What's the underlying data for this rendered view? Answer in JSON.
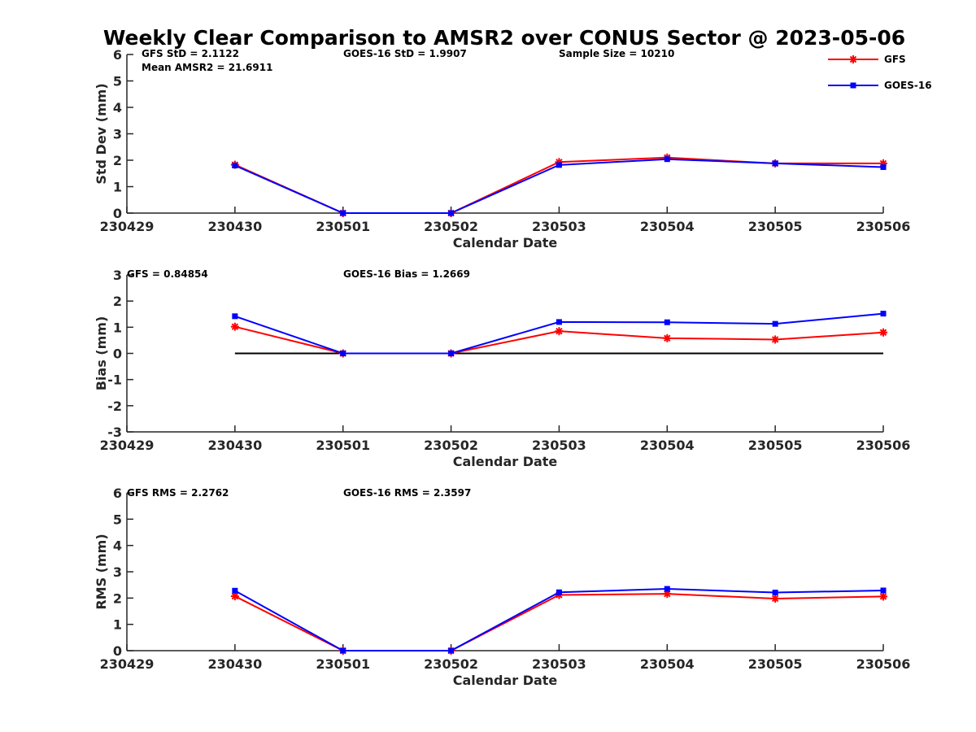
{
  "chart_data": {
    "type": "line",
    "title": "Weekly Clear Comparison to AMSR2 over CONUS Sector @ 2023-05-06",
    "x_ticks": [
      "230429",
      "230430",
      "230501",
      "230502",
      "230503",
      "230504",
      "230505",
      "230506"
    ],
    "legend": {
      "position": "top-right",
      "entries": [
        {
          "name": "GFS",
          "color": "#ff0000",
          "marker": "asterisk"
        },
        {
          "name": "GOES-16",
          "color": "#0000ff",
          "marker": "square"
        }
      ]
    },
    "panels": [
      {
        "id": "std",
        "ylabel": "Std Dev (mm)",
        "xlabel": "Calendar Date",
        "ylim": [
          0,
          6
        ],
        "yticks": [
          "0",
          "1",
          "2",
          "3",
          "4",
          "5",
          "6"
        ],
        "annotations": [
          "GFS StD = 2.1122",
          "Mean AMSR2 = 21.6911",
          "GOES-16 StD = 1.9907",
          "Sample Size = 10210"
        ],
        "zero_line": false,
        "series": [
          {
            "name": "GFS",
            "color": "#ff0000",
            "marker": "asterisk",
            "values": [
              1.83,
              0.0,
              0.0,
              1.93,
              2.1,
              1.88,
              1.88
            ]
          },
          {
            "name": "GOES-16",
            "color": "#0000ff",
            "marker": "square",
            "values": [
              1.8,
              0.0,
              0.0,
              1.82,
              2.04,
              1.88,
              1.74
            ]
          }
        ]
      },
      {
        "id": "bias",
        "ylabel": "Bias (mm)",
        "xlabel": "Calendar Date",
        "ylim": [
          -3,
          3
        ],
        "yticks": [
          "-3",
          "-2",
          "-1",
          "0",
          "1",
          "2",
          "3"
        ],
        "annotations": [
          "GFS = 0.84854",
          "GOES-16 Bias  = 1.2669"
        ],
        "zero_line": true,
        "series": [
          {
            "name": "GFS",
            "color": "#ff0000",
            "marker": "asterisk",
            "values": [
              1.02,
              0.0,
              0.0,
              0.85,
              0.58,
              0.53,
              0.8
            ]
          },
          {
            "name": "GOES-16",
            "color": "#0000ff",
            "marker": "square",
            "values": [
              1.42,
              0.0,
              0.0,
              1.2,
              1.19,
              1.13,
              1.52
            ]
          }
        ]
      },
      {
        "id": "rms",
        "ylabel": "RMS (mm)",
        "xlabel": "Calendar Date",
        "ylim": [
          0,
          6
        ],
        "yticks": [
          "0",
          "1",
          "2",
          "3",
          "4",
          "5",
          "6"
        ],
        "annotations": [
          "GFS RMS = 2.2762",
          "GOES-16 RMS = 2.3597"
        ],
        "zero_line": false,
        "series": [
          {
            "name": "GFS",
            "color": "#ff0000",
            "marker": "asterisk",
            "values": [
              2.07,
              0.0,
              0.0,
              2.12,
              2.16,
              1.98,
              2.06
            ]
          },
          {
            "name": "GOES-16",
            "color": "#0000ff",
            "marker": "square",
            "values": [
              2.28,
              0.0,
              0.0,
              2.22,
              2.35,
              2.21,
              2.29
            ]
          }
        ]
      }
    ]
  }
}
